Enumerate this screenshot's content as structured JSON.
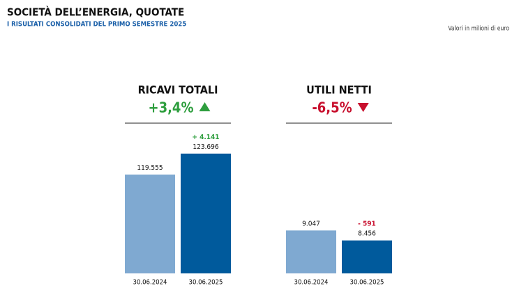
{
  "header": {
    "title": "SOCIETÀ DELL’ENERGIA, QUOTATE",
    "subtitle": "I RISULTATI CONSOLIDATI DEL PRIMO SEMESTRE 2025",
    "note": "Valori in milioni di euro"
  },
  "chart_data": [
    {
      "type": "bar",
      "title": "RICAVI TOTALI",
      "change": "+3,4%",
      "trend": "up",
      "change_color": "#2e9e3e",
      "categories": [
        "30.06.2024",
        "30.06.2025"
      ],
      "values": [
        119555,
        123696
      ],
      "value_labels": [
        "119.555",
        "123.696"
      ],
      "colors": [
        "#7fa9d1",
        "#005a9c"
      ],
      "ylim": [
        100000,
        130000
      ],
      "annotation": {
        "text": "+ 4.141",
        "color": "#2e9e3e"
      }
    },
    {
      "type": "bar",
      "title": "UTILI NETTI",
      "change": "-6,5%",
      "trend": "down",
      "change_color": "#c8102e",
      "categories": [
        "30.06.2024",
        "30.06.2025"
      ],
      "values": [
        9047,
        8456
      ],
      "value_labels": [
        "9.047",
        "8.456"
      ],
      "colors": [
        "#7fa9d1",
        "#005a9c"
      ],
      "ylim": [
        6500,
        15500
      ],
      "annotation": {
        "text": "- 591",
        "color": "#c8102e"
      }
    }
  ]
}
